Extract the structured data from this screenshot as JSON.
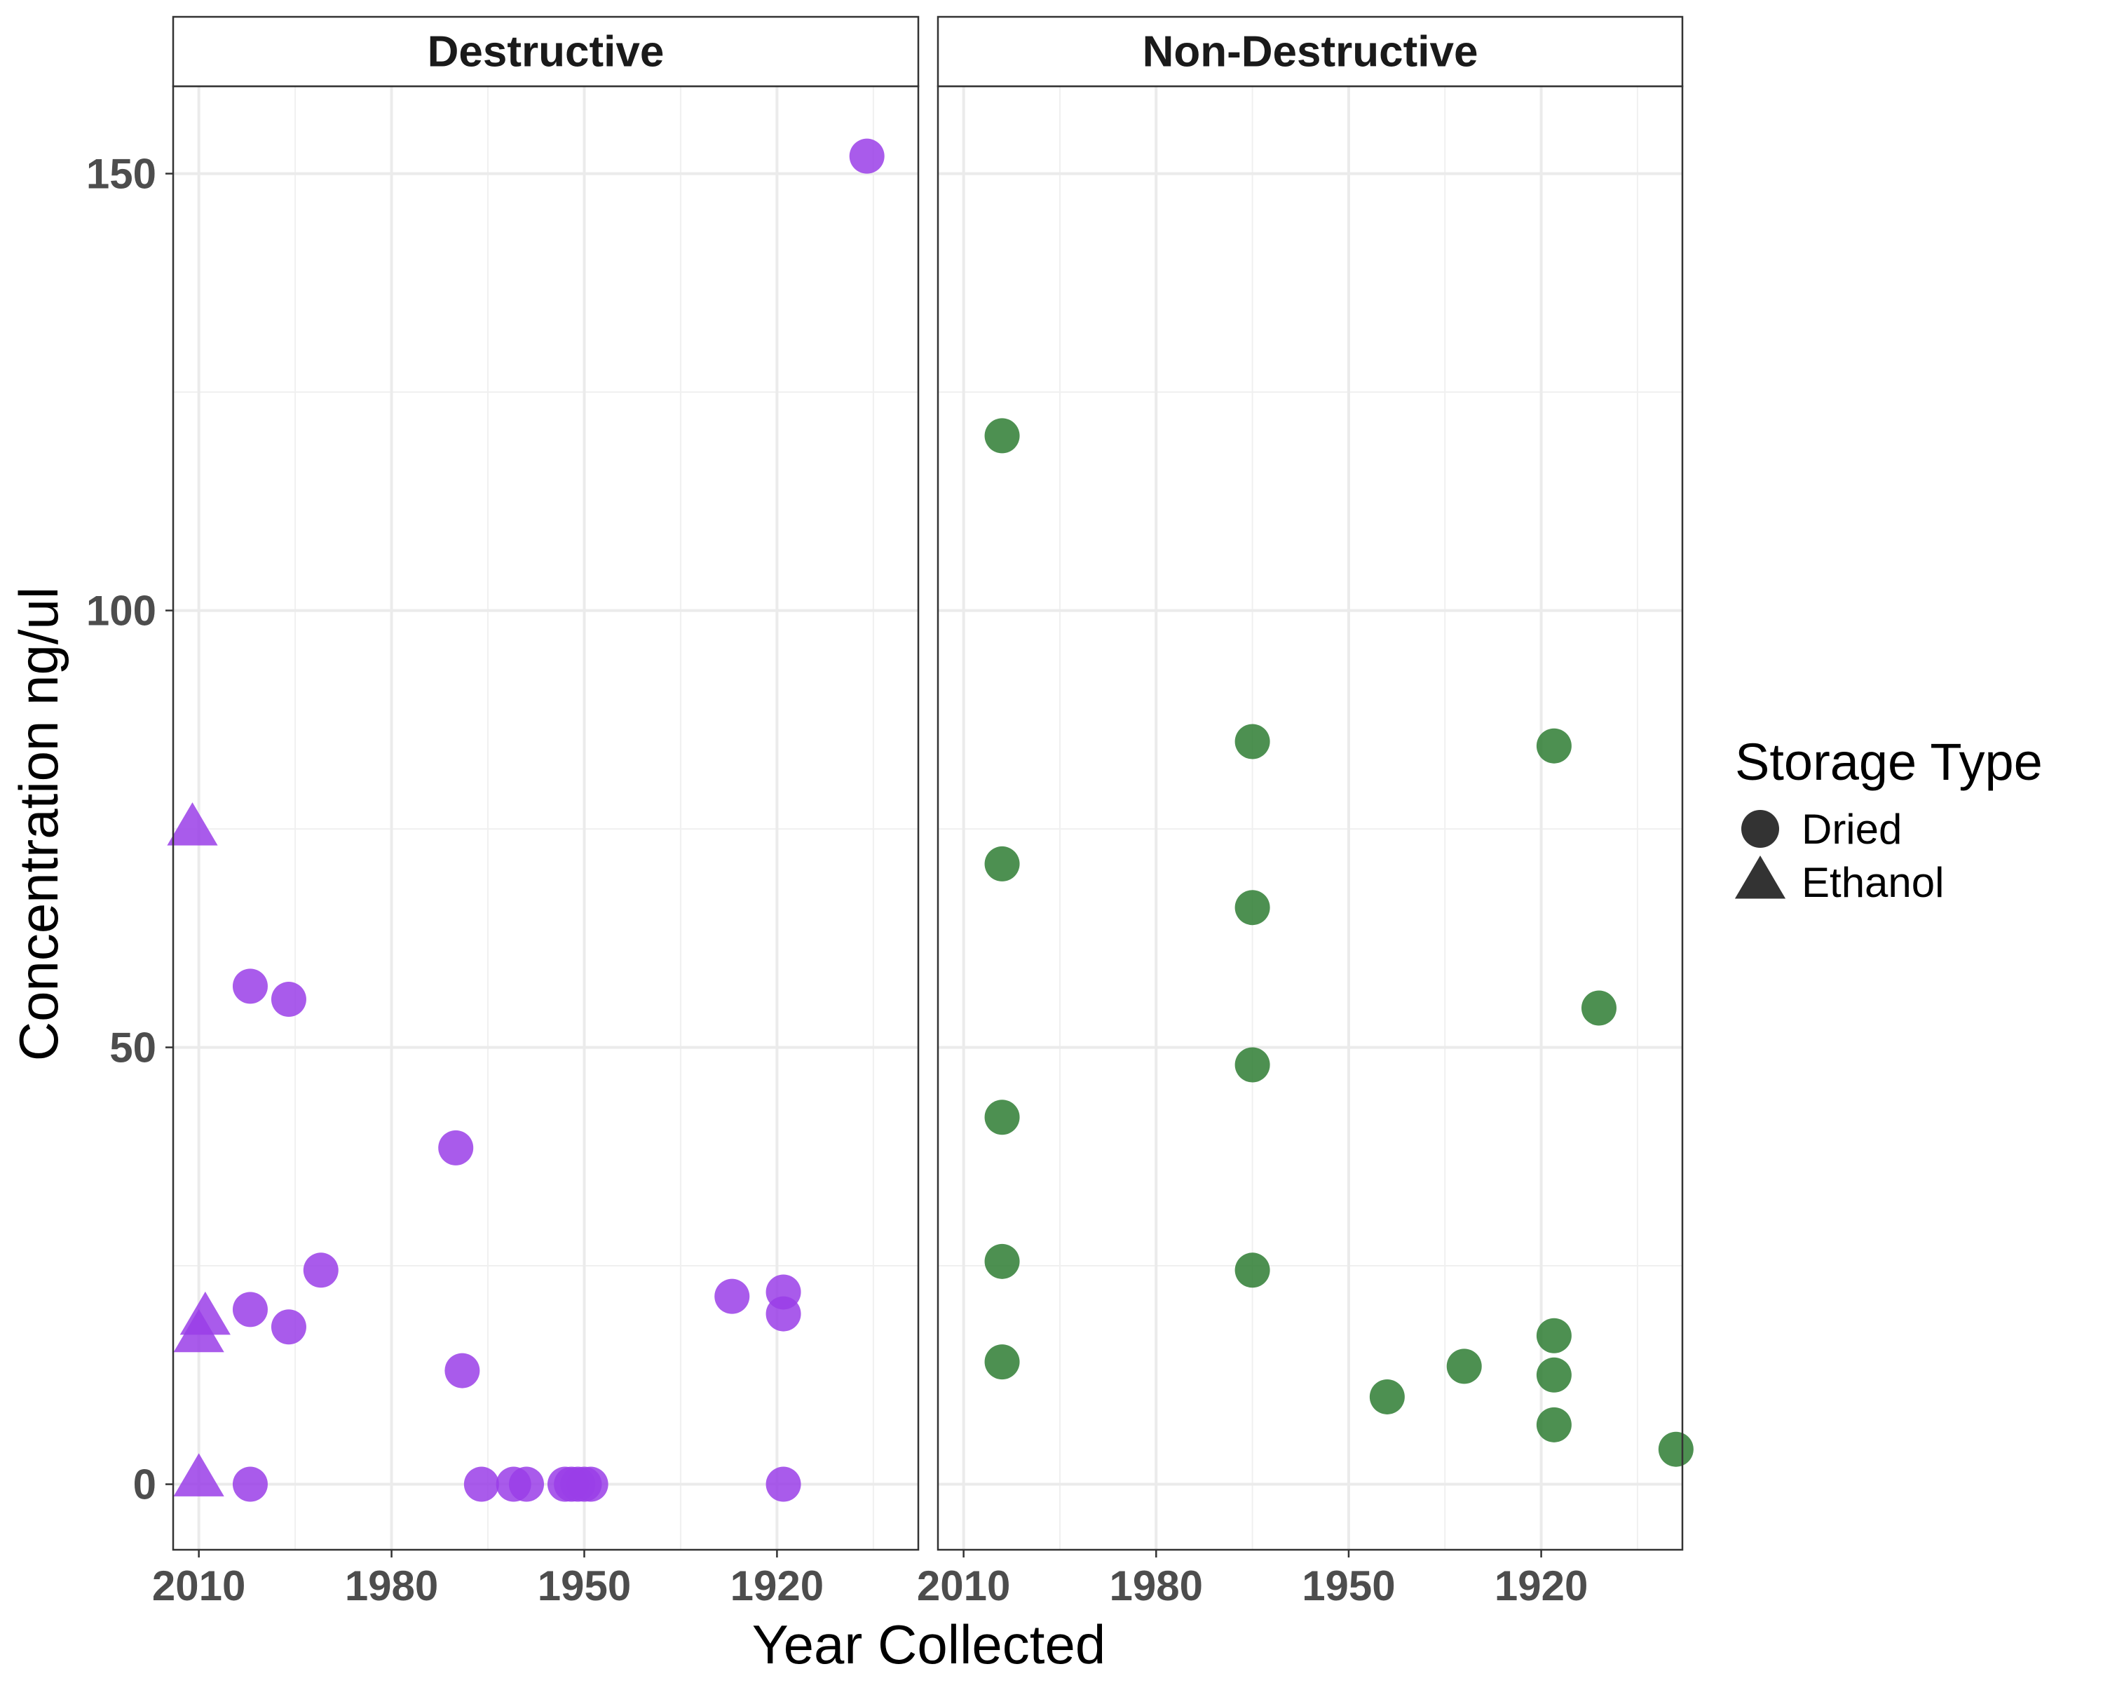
{
  "chart_data": {
    "type": "scatter",
    "xlabel": "Year Collected",
    "ylabel": "Concentration ng/ul",
    "x_reversed": true,
    "xlim": [
      2014,
      1898
    ],
    "ylim": [
      -7.5,
      160
    ],
    "x_ticks": [
      2010,
      1980,
      1950,
      1920
    ],
    "y_ticks": [
      0,
      50,
      100,
      150
    ],
    "grid": true,
    "legend": {
      "title": "Storage Type",
      "position": "right",
      "entries": [
        {
          "label": "Dried",
          "shape": "circle"
        },
        {
          "label": "Ethanol",
          "shape": "triangle"
        }
      ]
    },
    "panels": [
      {
        "title": "Destructive",
        "color": "#9a3ee8",
        "points": [
          {
            "x": 1906,
            "y": 152,
            "storage": "Dried"
          },
          {
            "x": 2002,
            "y": 57,
            "storage": "Dried"
          },
          {
            "x": 1996,
            "y": 55.5,
            "storage": "Dried"
          },
          {
            "x": 1970,
            "y": 38.5,
            "storage": "Dried"
          },
          {
            "x": 1991,
            "y": 24.5,
            "storage": "Dried"
          },
          {
            "x": 2002,
            "y": 20,
            "storage": "Dried"
          },
          {
            "x": 1996,
            "y": 18,
            "storage": "Dried"
          },
          {
            "x": 1969,
            "y": 13,
            "storage": "Dried"
          },
          {
            "x": 1927,
            "y": 21.5,
            "storage": "Dried"
          },
          {
            "x": 1919,
            "y": 22,
            "storage": "Dried"
          },
          {
            "x": 1919,
            "y": 19.5,
            "storage": "Dried"
          },
          {
            "x": 2002,
            "y": 0,
            "storage": "Dried"
          },
          {
            "x": 1966,
            "y": 0,
            "storage": "Dried"
          },
          {
            "x": 1961,
            "y": 0,
            "storage": "Dried"
          },
          {
            "x": 1959,
            "y": 0,
            "storage": "Dried"
          },
          {
            "x": 1953,
            "y": 0,
            "storage": "Dried"
          },
          {
            "x": 1952,
            "y": 0,
            "storage": "Dried"
          },
          {
            "x": 1951,
            "y": 0,
            "storage": "Dried"
          },
          {
            "x": 1950,
            "y": 0,
            "storage": "Dried"
          },
          {
            "x": 1949,
            "y": 0,
            "storage": "Dried"
          },
          {
            "x": 1919,
            "y": 0,
            "storage": "Dried"
          },
          {
            "x": 2011,
            "y": 75,
            "storage": "Ethanol"
          },
          {
            "x": 2009,
            "y": 19,
            "storage": "Ethanol"
          },
          {
            "x": 2010,
            "y": 17,
            "storage": "Ethanol"
          },
          {
            "x": 2010,
            "y": 0.5,
            "storage": "Ethanol"
          }
        ]
      },
      {
        "title": "Non-Destructive",
        "color": "#2e7d32",
        "points": [
          {
            "x": 2004,
            "y": 120,
            "storage": "Dried"
          },
          {
            "x": 2004,
            "y": 71,
            "storage": "Dried"
          },
          {
            "x": 2004,
            "y": 42,
            "storage": "Dried"
          },
          {
            "x": 2004,
            "y": 25.5,
            "storage": "Dried"
          },
          {
            "x": 2004,
            "y": 14,
            "storage": "Dried"
          },
          {
            "x": 1965,
            "y": 85,
            "storage": "Dried"
          },
          {
            "x": 1965,
            "y": 66,
            "storage": "Dried"
          },
          {
            "x": 1965,
            "y": 48,
            "storage": "Dried"
          },
          {
            "x": 1965,
            "y": 24.5,
            "storage": "Dried"
          },
          {
            "x": 1918,
            "y": 84.5,
            "storage": "Dried"
          },
          {
            "x": 1911,
            "y": 54.5,
            "storage": "Dried"
          },
          {
            "x": 1918,
            "y": 17,
            "storage": "Dried"
          },
          {
            "x": 1918,
            "y": 12.5,
            "storage": "Dried"
          },
          {
            "x": 1918,
            "y": 6.8,
            "storage": "Dried"
          },
          {
            "x": 1944,
            "y": 10,
            "storage": "Dried"
          },
          {
            "x": 1932,
            "y": 13.5,
            "storage": "Dried"
          },
          {
            "x": 1899,
            "y": 4,
            "storage": "Dried"
          }
        ]
      }
    ]
  }
}
